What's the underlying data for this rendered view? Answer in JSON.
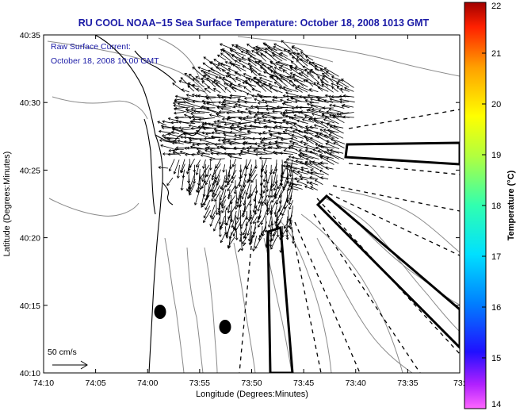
{
  "chart_data": {
    "type": "map",
    "title": "RU COOL  NOAA−15  Sea Surface Temperature:  October 18, 2008 1013 GMT",
    "annotation_line1": "Raw Surface Current:",
    "annotation_line2": "October 18, 2008 10:00 GMT",
    "xlabel": "Longitude (Degrees:Minutes)",
    "ylabel": "Latitude (Degrees:Minutes)",
    "x_ticks": [
      "74:10",
      "74:05",
      "74:00",
      "73:55",
      "73:50",
      "73:45",
      "73:40",
      "73:35",
      "73:3"
    ],
    "y_ticks": [
      "40:35",
      "40:30",
      "40:25",
      "40:20",
      "40:15",
      "40:10"
    ],
    "x_range_minutes_west": [
      10,
      -30
    ],
    "colorbar": {
      "label": "Temperature (°C)",
      "min": 14,
      "max": 22,
      "ticks": [
        "22",
        "21",
        "20",
        "19",
        "18",
        "17",
        "16",
        "15",
        "14"
      ]
    },
    "scale_label": "50 cm/s",
    "current_field": {
      "description": "raw surface current vectors concentrated off the harbor entrance",
      "dominant_direction": "westward / west-northwest",
      "approx_max_speed_cm_s": 50
    }
  }
}
